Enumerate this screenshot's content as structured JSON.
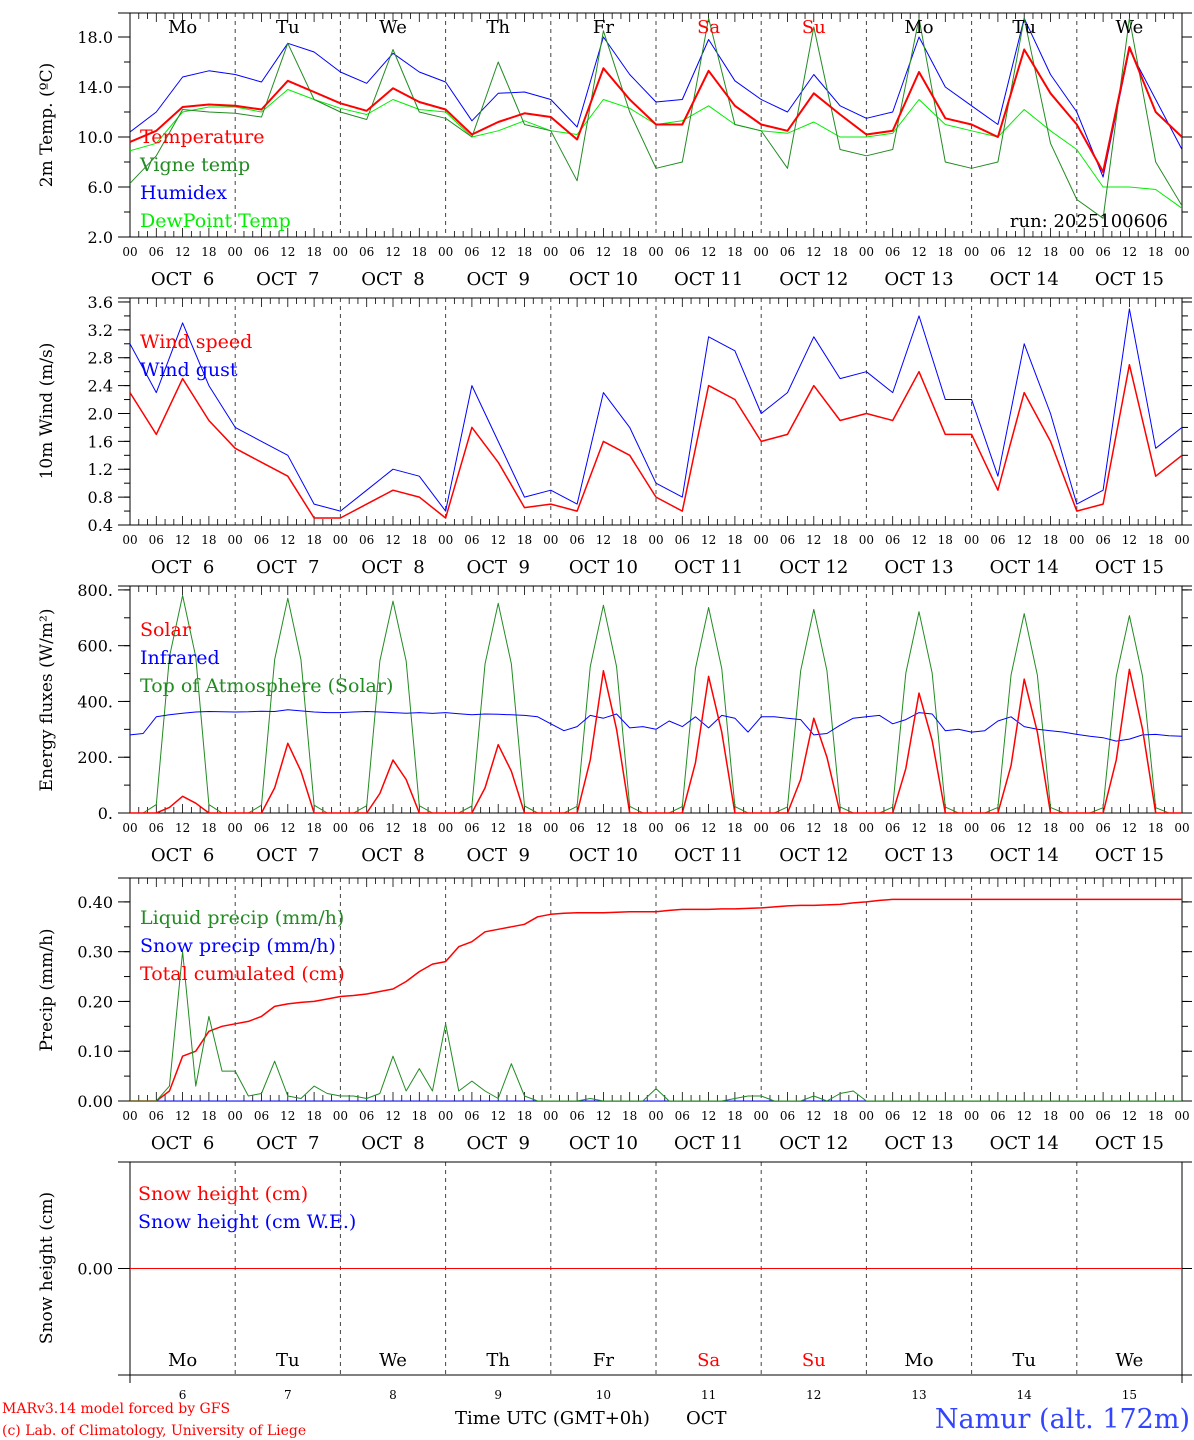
{
  "colors": {
    "red": "#ff0000",
    "darkgreen": "#228b22",
    "blue": "#0000ff",
    "lightgreen": "#00ee00",
    "black": "#000000",
    "namur": "#3344ff"
  },
  "x_axis": {
    "hour_labels": [
      "00",
      "06",
      "12",
      "18"
    ],
    "final_hour_label": "00",
    "date_labels": [
      "OCT  6",
      "OCT  7",
      "OCT  8",
      "OCT  9",
      "OCT 10",
      "OCT 11",
      "OCT 12",
      "OCT 13",
      "OCT 14",
      "OCT 15"
    ],
    "day_names": [
      "Mo",
      "Tu",
      "We",
      "Th",
      "Fr",
      "Sa",
      "Su",
      "Mo",
      "Tu",
      "We"
    ],
    "weekend_flags": [
      false,
      false,
      false,
      false,
      false,
      true,
      true,
      false,
      false,
      false
    ],
    "day_numbers": [
      "6",
      "7",
      "8",
      "9",
      "10",
      "11",
      "12",
      "13",
      "14",
      "15"
    ],
    "time_label": "Time UTC (GMT+0h)",
    "month_label": "OCT"
  },
  "footer": {
    "model": "MARv3.14 model forced by GFS",
    "credit": "(c) Lab. of Climatology, University of Liege",
    "station": "Namur (alt. 172m)"
  },
  "chart_data": [
    {
      "type": "line",
      "ylabel": "2m Temp. (ºC)",
      "ylim": [
        2,
        19.92
      ],
      "yticks": [
        2,
        6,
        10,
        14,
        18
      ],
      "yticklabels": [
        "2.0",
        "6.0",
        "10.0",
        "14.0",
        "18.0"
      ],
      "yminor": 2,
      "run_label": "run: 2025100606",
      "step_hours": 6,
      "series": [
        {
          "name": "Temperature",
          "color": "#ff0000",
          "width": 2,
          "values": [
            9.6,
            10.5,
            12.4,
            12.6,
            12.5,
            12.2,
            14.5,
            13.6,
            12.7,
            12.1,
            13.9,
            12.8,
            12.2,
            10.2,
            11.2,
            11.9,
            11.6,
            9.8,
            15.5,
            13.0,
            11.0,
            11.0,
            15.3,
            12.5,
            11.0,
            10.5,
            13.5,
            11.8,
            10.2,
            10.5,
            15.2,
            11.5,
            11.0,
            10.0,
            17.0,
            13.5,
            11.0,
            7.2,
            17.2,
            12.0,
            10.0
          ]
        },
        {
          "name": "Vigne temp",
          "color": "#228b22",
          "width": 1,
          "values": [
            6.3,
            8.5,
            12.2,
            12.0,
            11.9,
            11.6,
            17.5,
            13.0,
            12.0,
            11.4,
            17.0,
            12.0,
            11.5,
            10.0,
            16.0,
            11.0,
            10.5,
            6.5,
            18.5,
            12.0,
            7.5,
            8.0,
            19.5,
            11.0,
            10.5,
            7.5,
            18.8,
            9.0,
            8.5,
            9.0,
            19.5,
            8.0,
            7.5,
            8.0,
            19.5,
            9.5,
            5.0,
            3.5,
            19.5,
            8.0,
            4.5
          ]
        },
        {
          "name": "Humidex",
          "color": "#0000ff",
          "width": 1,
          "values": [
            10.4,
            12.0,
            14.8,
            15.3,
            15.0,
            14.4,
            17.5,
            16.8,
            15.2,
            14.3,
            16.7,
            15.2,
            14.4,
            11.3,
            13.5,
            13.6,
            13.0,
            10.8,
            18.0,
            15.0,
            12.8,
            13.0,
            17.8,
            14.5,
            13.0,
            12.0,
            15.0,
            12.5,
            11.5,
            12.0,
            18.0,
            14.0,
            12.5,
            11.0,
            19.5,
            15.0,
            12.0,
            6.8,
            17.0,
            13.0,
            9.0
          ]
        },
        {
          "name": "DewPoint Temp",
          "color": "#00ee00",
          "width": 1,
          "values": [
            8.9,
            9.5,
            12.0,
            12.4,
            12.4,
            12.0,
            13.8,
            13.0,
            12.3,
            11.8,
            13.0,
            12.2,
            12.0,
            10.0,
            10.5,
            11.3,
            10.5,
            10.2,
            13.0,
            12.3,
            11.0,
            11.3,
            12.5,
            11.0,
            10.5,
            10.3,
            11.2,
            10.0,
            10.0,
            10.3,
            13.0,
            11.0,
            10.5,
            10.0,
            12.2,
            10.5,
            9.0,
            6.0,
            6.0,
            5.8,
            4.3
          ]
        }
      ]
    },
    {
      "type": "line",
      "ylabel": "10m Wind (m/s)",
      "ylim": [
        0.4,
        3.657
      ],
      "yticks": [
        0.4,
        0.8,
        1.2,
        1.6,
        2.0,
        2.4,
        2.8,
        3.2,
        3.6
      ],
      "yticklabels": [
        "0.4",
        "0.8",
        "1.2",
        "1.6",
        "2.0",
        "2.4",
        "2.8",
        "3.2",
        "3.6"
      ],
      "yminor": 0.2,
      "step_hours": 6,
      "series": [
        {
          "name": "Wind speed",
          "color": "#ff0000",
          "width": 1.5,
          "values": [
            2.3,
            1.7,
            2.5,
            1.9,
            1.5,
            1.3,
            1.1,
            0.5,
            0.5,
            0.7,
            0.9,
            0.8,
            0.5,
            1.8,
            1.3,
            0.65,
            0.7,
            0.6,
            1.6,
            1.4,
            0.8,
            0.6,
            2.4,
            2.2,
            1.6,
            1.7,
            2.4,
            1.9,
            2.0,
            1.9,
            2.6,
            1.7,
            1.7,
            0.9,
            2.3,
            1.6,
            0.6,
            0.7,
            2.7,
            1.1,
            1.4
          ]
        },
        {
          "name": "Wind gust",
          "color": "#0000ff",
          "width": 1,
          "values": [
            3.0,
            2.3,
            3.3,
            2.4,
            1.8,
            1.6,
            1.4,
            0.7,
            0.6,
            0.9,
            1.2,
            1.1,
            0.6,
            2.4,
            1.6,
            0.8,
            0.9,
            0.7,
            2.3,
            1.8,
            1.0,
            0.8,
            3.1,
            2.9,
            2.0,
            2.3,
            3.1,
            2.5,
            2.6,
            2.3,
            3.4,
            2.2,
            2.2,
            1.1,
            3.0,
            2.0,
            0.7,
            0.9,
            3.5,
            1.5,
            1.8
          ]
        }
      ]
    },
    {
      "type": "line",
      "ylabel": "Energy fluxes (W/m²)",
      "ylim": [
        0,
        814
      ],
      "yticks": [
        0,
        200,
        400,
        600,
        800
      ],
      "yticklabels": [
        "0.",
        "200.",
        "400.",
        "600.",
        "800."
      ],
      "yminor": 100,
      "step_hours": 3,
      "series": [
        {
          "name": "Solar",
          "color": "#ff0000",
          "width": 1.5,
          "values": [
            0,
            0,
            0,
            20,
            60,
            35,
            0,
            0,
            0,
            0,
            0,
            90,
            250,
            150,
            0,
            0,
            0,
            0,
            0,
            70,
            190,
            120,
            0,
            0,
            0,
            0,
            0,
            90,
            245,
            150,
            0,
            0,
            0,
            0,
            0,
            190,
            510,
            300,
            0,
            0,
            0,
            0,
            0,
            180,
            490,
            290,
            0,
            0,
            0,
            0,
            0,
            120,
            340,
            200,
            0,
            0,
            0,
            0,
            0,
            160,
            430,
            260,
            0,
            0,
            0,
            0,
            0,
            170,
            480,
            290,
            0,
            0,
            0,
            0,
            0,
            190,
            515,
            300,
            0,
            0,
            0
          ]
        },
        {
          "name": "Infrared",
          "color": "#0000ff",
          "width": 1,
          "values": [
            280,
            285,
            345,
            352,
            358,
            362,
            364,
            363,
            362,
            363,
            365,
            364,
            370,
            366,
            362,
            360,
            360,
            362,
            364,
            362,
            360,
            358,
            360,
            357,
            360,
            356,
            352,
            355,
            354,
            352,
            350,
            345,
            320,
            295,
            310,
            350,
            340,
            355,
            305,
            310,
            300,
            330,
            310,
            345,
            305,
            350,
            340,
            290,
            345,
            345,
            340,
            335,
            280,
            285,
            315,
            340,
            345,
            350,
            320,
            335,
            360,
            355,
            295,
            300,
            290,
            295,
            330,
            345,
            310,
            300,
            295,
            290,
            282,
            275,
            270,
            258,
            265,
            280,
            282,
            277,
            275
          ]
        },
        {
          "name": "Top of Atmosphere (Solar)",
          "color": "#228b22",
          "width": 1,
          "values": [
            0,
            0,
            30,
            560,
            780,
            560,
            30,
            0,
            0,
            0,
            28,
            550,
            770,
            550,
            28,
            0,
            0,
            0,
            26,
            545,
            760,
            545,
            26,
            0,
            0,
            0,
            25,
            535,
            752,
            535,
            25,
            0,
            0,
            0,
            24,
            525,
            745,
            525,
            24,
            0,
            0,
            0,
            23,
            518,
            737,
            518,
            23,
            0,
            0,
            0,
            22,
            510,
            730,
            510,
            22,
            0,
            0,
            0,
            21,
            502,
            722,
            502,
            21,
            0,
            0,
            0,
            20,
            495,
            715,
            495,
            20,
            0,
            0,
            0,
            19,
            490,
            708,
            490,
            19,
            0,
            0
          ]
        }
      ]
    },
    {
      "type": "line",
      "ylabel": "Precip (mm/h)",
      "ylim": [
        0,
        0.448
      ],
      "yticks": [
        0,
        0.1,
        0.2,
        0.3,
        0.4
      ],
      "yticklabels": [
        "0.00",
        "0.10",
        "0.20",
        "0.30",
        "0.40"
      ],
      "yminor": 0.05,
      "step_hours": 3,
      "series": [
        {
          "name": "Liquid precip (mm/h)",
          "color": "#228b22",
          "width": 1,
          "values": [
            0,
            0,
            0,
            0.03,
            0.3,
            0.03,
            0.17,
            0.06,
            0.06,
            0.01,
            0.015,
            0.08,
            0.01,
            0.005,
            0.03,
            0.015,
            0.01,
            0.01,
            0.005,
            0.015,
            0.09,
            0.02,
            0.065,
            0.02,
            0.155,
            0.02,
            0.04,
            0.02,
            0.005,
            0.075,
            0.01,
            0,
            0,
            0,
            0,
            0.005,
            0,
            0,
            0,
            0,
            0.025,
            0,
            0,
            0,
            0,
            0,
            0.005,
            0.01,
            0.01,
            0,
            0,
            0,
            0.01,
            0,
            0.015,
            0.02,
            0,
            0,
            0,
            0,
            0,
            0,
            0,
            0,
            0,
            0,
            0,
            0,
            0,
            0,
            0,
            0,
            0,
            0,
            0,
            0,
            0,
            0,
            0,
            0,
            0
          ]
        },
        {
          "name": "Snow precip (mm/h)",
          "color": "#0000ff",
          "width": 1,
          "values": [
            0,
            0,
            0,
            0,
            0,
            0,
            0,
            0,
            0,
            0,
            0,
            0,
            0,
            0,
            0,
            0,
            0,
            0,
            0,
            0,
            0,
            0,
            0,
            0,
            0,
            0,
            0,
            0,
            0,
            0,
            0,
            0,
            0,
            0,
            0,
            0,
            0,
            0,
            0,
            0,
            0,
            0,
            0,
            0,
            0,
            0,
            0,
            0,
            0,
            0,
            0,
            0,
            0,
            0,
            0,
            0,
            0,
            0,
            0,
            0,
            0,
            0,
            0,
            0,
            0,
            0,
            0,
            0,
            0,
            0,
            0,
            0,
            0,
            0,
            0,
            0,
            0,
            0,
            0,
            0,
            0
          ]
        },
        {
          "name": "Total cumulated (cm)",
          "color": "#ff0000",
          "width": 1.5,
          "values": [
            0,
            0,
            0,
            0.02,
            0.09,
            0.1,
            0.14,
            0.15,
            0.155,
            0.16,
            0.17,
            0.19,
            0.195,
            0.198,
            0.2,
            0.205,
            0.21,
            0.212,
            0.215,
            0.22,
            0.225,
            0.24,
            0.26,
            0.275,
            0.28,
            0.31,
            0.32,
            0.34,
            0.345,
            0.35,
            0.355,
            0.37,
            0.375,
            0.377,
            0.378,
            0.378,
            0.378,
            0.379,
            0.38,
            0.38,
            0.38,
            0.383,
            0.385,
            0.385,
            0.385,
            0.386,
            0.386,
            0.387,
            0.388,
            0.39,
            0.392,
            0.393,
            0.393,
            0.394,
            0.395,
            0.398,
            0.4,
            0.403,
            0.405,
            0.405,
            0.405,
            0.405,
            0.405,
            0.405,
            0.405,
            0.405,
            0.405,
            0.405,
            0.405,
            0.405,
            0.405,
            0.405,
            0.405,
            0.405,
            0.405,
            0.405,
            0.405,
            0.405,
            0.405,
            0.405,
            0.405
          ]
        }
      ]
    },
    {
      "type": "line",
      "ylabel": "Snow height (cm)",
      "ylim": [
        -0.1,
        0.1
      ],
      "yticks": [
        0
      ],
      "yticklabels": [
        "0.00"
      ],
      "yminor": 0,
      "step_hours": 24,
      "series": [
        {
          "name": "Snow height (cm)",
          "color": "#ff0000",
          "width": 1,
          "values": [
            0,
            0,
            0,
            0,
            0,
            0,
            0,
            0,
            0,
            0,
            0
          ]
        },
        {
          "name": "Snow height (cm W.E.)",
          "color": "#0000ff",
          "width": 1,
          "values": [
            0,
            0,
            0,
            0,
            0,
            0,
            0,
            0,
            0,
            0,
            0
          ]
        }
      ]
    }
  ]
}
